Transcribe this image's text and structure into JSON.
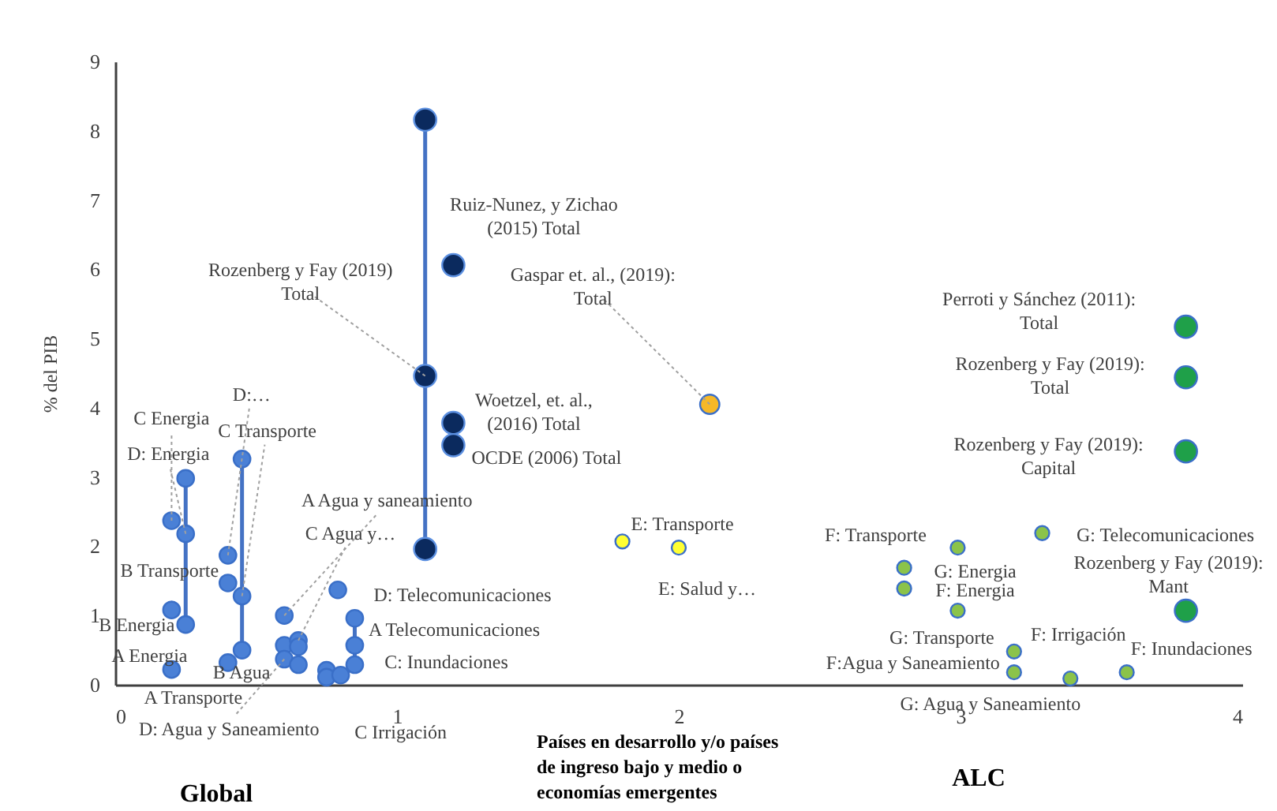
{
  "chart_data": {
    "type": "scatter",
    "ylabel": "% del PIB",
    "xlim": [
      0,
      4
    ],
    "xticks": [
      0,
      1,
      2,
      3,
      4
    ],
    "ylim": [
      0,
      9
    ],
    "yticks": [
      0,
      1,
      2,
      3,
      4,
      5,
      6,
      7,
      8,
      9
    ],
    "grid": false,
    "series": [
      {
        "type": "line",
        "color": "#4472c4",
        "x": [
          0.25,
          0.25
        ],
        "values": [
          0.87,
          2.98
        ]
      },
      {
        "type": "line",
        "color": "#4472c4",
        "x": [
          0.45,
          0.45
        ],
        "values": [
          0.5,
          3.26
        ]
      },
      {
        "type": "line",
        "color": "#4472c4",
        "x": [
          0.85,
          0.85
        ],
        "values": [
          0.29,
          0.96
        ]
      },
      {
        "type": "line",
        "color": "#4472c4",
        "x": [
          1.1,
          1.1
        ],
        "values": [
          1.96,
          8.16
        ]
      },
      {
        "marker": "circle",
        "color": "#4a80d6",
        "x": [
          0.2,
          0.25,
          0.25,
          0.2,
          0.25,
          0.2,
          0.4,
          0.4,
          0.45,
          0.45,
          0.45,
          0.4,
          0.6,
          0.6,
          0.65,
          0.65,
          0.6,
          0.65,
          0.75,
          0.75,
          0.8,
          0.79,
          0.85,
          0.85,
          0.85
        ],
        "values": [
          2.37,
          2.98,
          2.18,
          1.08,
          0.87,
          0.22,
          1.87,
          1.47,
          3.26,
          1.28,
          0.5,
          0.32,
          1.0,
          0.57,
          0.64,
          0.55,
          0.37,
          0.29,
          0.21,
          0.11,
          0.14,
          1.37,
          0.96,
          0.57,
          0.29
        ]
      },
      {
        "marker": "circle",
        "color": "#0b2a5e",
        "x": [
          1.1,
          1.1,
          1.1,
          1.2,
          1.2,
          1.2
        ],
        "values": [
          8.16,
          4.46,
          1.96,
          6.06,
          3.78,
          3.46
        ]
      },
      {
        "marker": "circle",
        "color": "#ffff33",
        "x": [
          1.8,
          2.0
        ],
        "values": [
          2.07,
          1.98
        ]
      },
      {
        "marker": "circle",
        "color": "#f6b828",
        "x": [
          2.11
        ],
        "values": [
          4.05
        ]
      },
      {
        "marker": "circle",
        "color": "#8bc34a",
        "x": [
          2.99,
          2.8,
          2.8,
          2.99,
          3.19,
          3.19,
          3.39,
          3.59,
          3.29
        ],
        "values": [
          1.98,
          1.69,
          1.39,
          1.07,
          0.48,
          0.18,
          0.09,
          0.18,
          2.19
        ]
      },
      {
        "marker": "circle",
        "color": "#1fa049",
        "x": [
          3.8,
          3.8,
          3.8,
          3.8
        ],
        "values": [
          5.17,
          4.44,
          3.37,
          1.07
        ]
      }
    ],
    "annotations": [
      {
        "text": "C Energia",
        "x": 0.2,
        "y": 2.37
      },
      {
        "text": "D:…",
        "x": 0.4,
        "y": 1.87
      },
      {
        "text": "C Transporte",
        "x": 0.45,
        "y": 1.28
      },
      {
        "text": "D: Energia",
        "x": 0.25,
        "y": 2.18
      },
      {
        "text": "B Transporte",
        "x": 0.4,
        "y": 1.47
      },
      {
        "text": "B Energia",
        "x": 0.25,
        "y": 0.87
      },
      {
        "text": "A Energia",
        "x": 0.2,
        "y": 0.22
      },
      {
        "text": "A Transporte",
        "x": 0.4,
        "y": 0.32
      },
      {
        "text": "D: Agua y Saneamiento",
        "x": 0.6,
        "y": 0.37
      },
      {
        "text": "B Agua",
        "x": 0.65,
        "y": 0.55
      },
      {
        "text": "C Irrigación",
        "x": 0.8,
        "y": 0.14
      },
      {
        "text": "C: Inundaciones",
        "x": 0.85,
        "y": 0.29
      },
      {
        "text": "A Telecomunicaciones",
        "x": 0.85,
        "y": 0.96
      },
      {
        "text": "D: Telecomunicaciones",
        "x": 0.79,
        "y": 1.37
      },
      {
        "text": "C Agua y…",
        "x": 0.65,
        "y": 0.64
      },
      {
        "text": "A Agua y saneamiento",
        "x": 0.6,
        "y": 1.0
      },
      {
        "text": "Ruiz-Nunez, y Zichao\n(2015) Total",
        "x": 1.2,
        "y": 6.06
      },
      {
        "text": "Rozenberg y Fay (2019)\nTotal",
        "x": 1.1,
        "y": 4.46
      },
      {
        "text": "Woetzel, et. al.,\n(2016) Total",
        "x": 1.2,
        "y": 3.78
      },
      {
        "text": "OCDE (2006)  Total",
        "x": 1.2,
        "y": 3.46
      },
      {
        "text": "Gaspar et. al., (2019):\nTotal",
        "x": 2.11,
        "y": 4.05
      },
      {
        "text": "E: Transporte",
        "x": 1.8,
        "y": 2.07
      },
      {
        "text": "E: Salud y…",
        "x": 2.0,
        "y": 1.98
      },
      {
        "text": "F: Transporte",
        "x": 2.99,
        "y": 1.98
      },
      {
        "text": "G: Energia",
        "x": 2.8,
        "y": 1.69
      },
      {
        "text": "F: Energia",
        "x": 2.8,
        "y": 1.39
      },
      {
        "text": "G: Transporte",
        "x": 2.99,
        "y": 1.07
      },
      {
        "text": "F:Agua y Saneamiento",
        "x": 3.19,
        "y": 0.48
      },
      {
        "text": "G: Agua y Saneamiento",
        "x": 3.19,
        "y": 0.18
      },
      {
        "text": "F: Irrigación",
        "x": 3.39,
        "y": 0.09
      },
      {
        "text": "F: Inundaciones",
        "x": 3.59,
        "y": 0.18
      },
      {
        "text": "G: Telecomunicaciones",
        "x": 3.29,
        "y": 2.19
      },
      {
        "text": "Perroti y Sánchez (2011):\nTotal",
        "x": 3.8,
        "y": 5.17
      },
      {
        "text": "Rozenberg y Fay (2019):\nTotal",
        "x": 3.8,
        "y": 4.44
      },
      {
        "text": "Rozenberg y Fay (2019):\nCapital",
        "x": 3.8,
        "y": 3.37
      },
      {
        "text": "Rozenberg y Fay (2019):\nMant",
        "x": 3.8,
        "y": 1.07
      },
      "Global",
      "Países en desarrollo y/o países\nde ingreso bajo y medio o\neconomías emergentes",
      "ALC"
    ]
  }
}
